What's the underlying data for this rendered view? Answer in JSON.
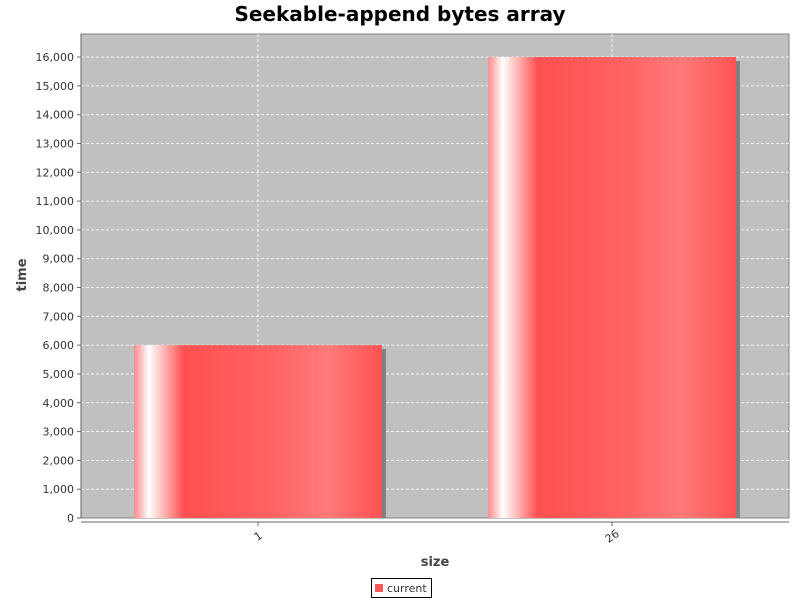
{
  "chart_data": {
    "type": "bar",
    "title": "Seekable-append bytes array",
    "xlabel": "size",
    "ylabel": "time",
    "categories": [
      "1",
      "26"
    ],
    "series": [
      {
        "name": "current",
        "values": [
          6000,
          16000
        ]
      }
    ],
    "ylim": [
      0,
      16800
    ],
    "yticks": [
      0,
      1000,
      2000,
      3000,
      4000,
      5000,
      6000,
      7000,
      8000,
      9000,
      10000,
      11000,
      12000,
      13000,
      14000,
      15000,
      16000
    ],
    "grid": true,
    "legend": "bottom-center",
    "colors": {
      "plot_background": "#c0c0c0",
      "bar": "#ff5555",
      "grid": "#ffffff"
    }
  }
}
